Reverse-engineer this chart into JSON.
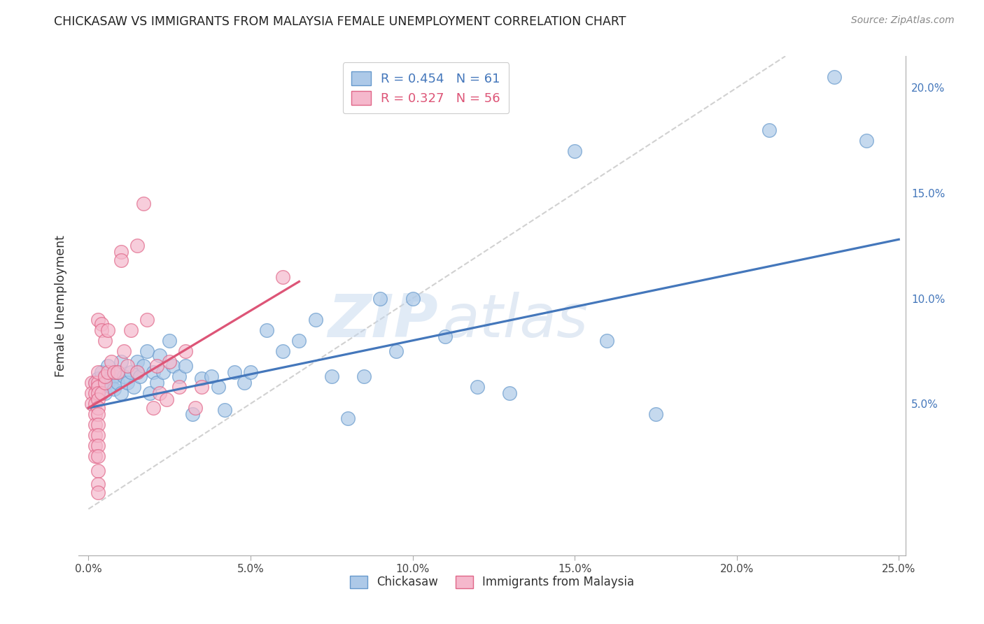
{
  "title": "CHICKASAW VS IMMIGRANTS FROM MALAYSIA FEMALE UNEMPLOYMENT CORRELATION CHART",
  "source": "Source: ZipAtlas.com",
  "ylabel": "Female Unemployment",
  "watermark_zip": "ZIP",
  "watermark_atlas": "atlas",
  "legend_blue_R": "0.454",
  "legend_blue_N": "61",
  "legend_pink_R": "0.327",
  "legend_pink_N": "56",
  "xlim": [
    -0.003,
    0.252
  ],
  "ylim": [
    -0.022,
    0.215
  ],
  "xticks": [
    0.0,
    0.05,
    0.1,
    0.15,
    0.2,
    0.25
  ],
  "xtick_labels": [
    "0.0%",
    "5.0%",
    "10.0%",
    "15.0%",
    "20.0%",
    "25.0%"
  ],
  "ytick_labels": [
    "5.0%",
    "10.0%",
    "15.0%",
    "20.0%"
  ],
  "yticks": [
    0.05,
    0.1,
    0.15,
    0.2
  ],
  "blue_face_color": "#adc9e8",
  "blue_edge_color": "#6699cc",
  "pink_face_color": "#f5b8cc",
  "pink_edge_color": "#e06688",
  "blue_line_color": "#4477bb",
  "pink_line_color": "#dd5577",
  "diagonal_color": "#cccccc",
  "blue_scatter_x": [
    0.002,
    0.003,
    0.004,
    0.004,
    0.005,
    0.005,
    0.006,
    0.006,
    0.007,
    0.007,
    0.008,
    0.008,
    0.009,
    0.009,
    0.01,
    0.01,
    0.011,
    0.012,
    0.013,
    0.014,
    0.015,
    0.015,
    0.016,
    0.017,
    0.018,
    0.019,
    0.02,
    0.021,
    0.022,
    0.023,
    0.025,
    0.026,
    0.028,
    0.03,
    0.032,
    0.035,
    0.038,
    0.04,
    0.042,
    0.045,
    0.048,
    0.05,
    0.055,
    0.06,
    0.065,
    0.07,
    0.075,
    0.08,
    0.085,
    0.09,
    0.095,
    0.1,
    0.11,
    0.12,
    0.13,
    0.15,
    0.16,
    0.175,
    0.21,
    0.23,
    0.24
  ],
  "blue_scatter_y": [
    0.06,
    0.062,
    0.058,
    0.065,
    0.055,
    0.063,
    0.06,
    0.068,
    0.062,
    0.058,
    0.063,
    0.057,
    0.06,
    0.065,
    0.055,
    0.07,
    0.063,
    0.06,
    0.065,
    0.058,
    0.065,
    0.07,
    0.063,
    0.068,
    0.075,
    0.055,
    0.065,
    0.06,
    0.073,
    0.065,
    0.08,
    0.068,
    0.063,
    0.068,
    0.045,
    0.062,
    0.063,
    0.058,
    0.047,
    0.065,
    0.06,
    0.065,
    0.085,
    0.075,
    0.08,
    0.09,
    0.063,
    0.043,
    0.063,
    0.1,
    0.075,
    0.1,
    0.082,
    0.058,
    0.055,
    0.17,
    0.08,
    0.045,
    0.18,
    0.205,
    0.175
  ],
  "pink_scatter_x": [
    0.001,
    0.001,
    0.001,
    0.002,
    0.002,
    0.002,
    0.002,
    0.002,
    0.002,
    0.002,
    0.002,
    0.003,
    0.003,
    0.003,
    0.003,
    0.003,
    0.003,
    0.003,
    0.003,
    0.003,
    0.003,
    0.003,
    0.003,
    0.003,
    0.003,
    0.003,
    0.004,
    0.004,
    0.004,
    0.005,
    0.005,
    0.005,
    0.006,
    0.006,
    0.007,
    0.008,
    0.009,
    0.01,
    0.01,
    0.011,
    0.012,
    0.013,
    0.015,
    0.015,
    0.017,
    0.018,
    0.02,
    0.021,
    0.022,
    0.024,
    0.025,
    0.028,
    0.03,
    0.033,
    0.035,
    0.06
  ],
  "pink_scatter_y": [
    0.06,
    0.055,
    0.05,
    0.06,
    0.055,
    0.05,
    0.045,
    0.04,
    0.035,
    0.03,
    0.025,
    0.06,
    0.058,
    0.055,
    0.052,
    0.048,
    0.045,
    0.04,
    0.035,
    0.03,
    0.025,
    0.018,
    0.012,
    0.008,
    0.065,
    0.09,
    0.055,
    0.088,
    0.085,
    0.06,
    0.063,
    0.08,
    0.065,
    0.085,
    0.07,
    0.065,
    0.065,
    0.122,
    0.118,
    0.075,
    0.068,
    0.085,
    0.065,
    0.125,
    0.145,
    0.09,
    0.048,
    0.068,
    0.055,
    0.052,
    0.07,
    0.058,
    0.075,
    0.048,
    0.058,
    0.11
  ],
  "blue_line_x": [
    0.0,
    0.25
  ],
  "blue_line_y": [
    0.048,
    0.128
  ],
  "pink_line_x": [
    0.0,
    0.065
  ],
  "pink_line_y": [
    0.048,
    0.108
  ],
  "diag_line_x": [
    0.0,
    0.215
  ],
  "diag_line_y": [
    0.0,
    0.215
  ]
}
